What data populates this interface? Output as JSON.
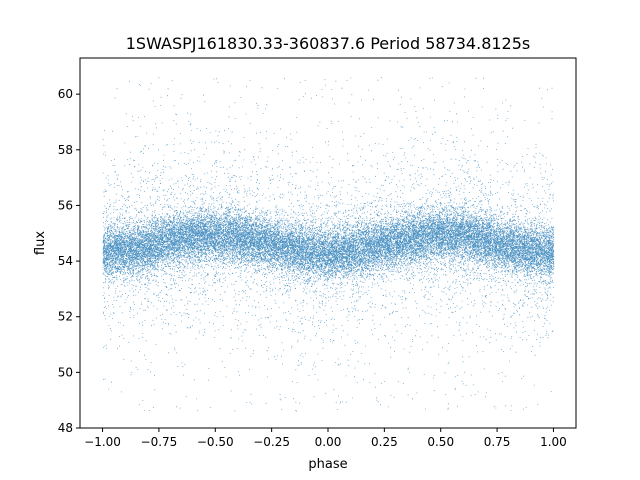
{
  "chart_data": {
    "type": "scatter",
    "title": "1SWASPJ161830.33-360837.6 Period 58734.8125s",
    "xlabel": "phase",
    "ylabel": "flux",
    "xlim": [
      -1.1,
      1.1
    ],
    "ylim": [
      48.0,
      61.3
    ],
    "x_ticks": [
      -1.0,
      -0.75,
      -0.5,
      -0.25,
      0.0,
      0.25,
      0.5,
      0.75,
      1.0
    ],
    "x_tick_labels": [
      "−1.00",
      "−0.75",
      "−0.50",
      "−0.25",
      "0.00",
      "0.25",
      "0.50",
      "0.75",
      "1.00"
    ],
    "y_ticks": [
      48,
      50,
      52,
      54,
      56,
      58,
      60
    ],
    "y_tick_labels": [
      "48",
      "50",
      "52",
      "54",
      "56",
      "58",
      "60"
    ],
    "grid": false,
    "legend": "none",
    "marker_color": "#1f77b4",
    "series": [
      {
        "mean_curve": {
          "phase": [
            -1.0,
            -0.9,
            -0.8,
            -0.7,
            -0.6,
            -0.5,
            -0.4,
            -0.3,
            -0.2,
            -0.1,
            0.0,
            0.1,
            0.2,
            0.3,
            0.4,
            0.5,
            0.6,
            0.7,
            0.8,
            0.9,
            1.0
          ],
          "flux": [
            54.3,
            54.4,
            54.5,
            54.75,
            54.9,
            54.9,
            54.85,
            54.7,
            54.5,
            54.35,
            54.25,
            54.35,
            54.5,
            54.7,
            54.85,
            54.95,
            54.9,
            54.75,
            54.5,
            54.35,
            54.3
          ]
        },
        "scatter_sigma_core": 0.45,
        "scatter_sigma_wide": 1.6,
        "approx_point_count": 30000
      }
    ]
  }
}
